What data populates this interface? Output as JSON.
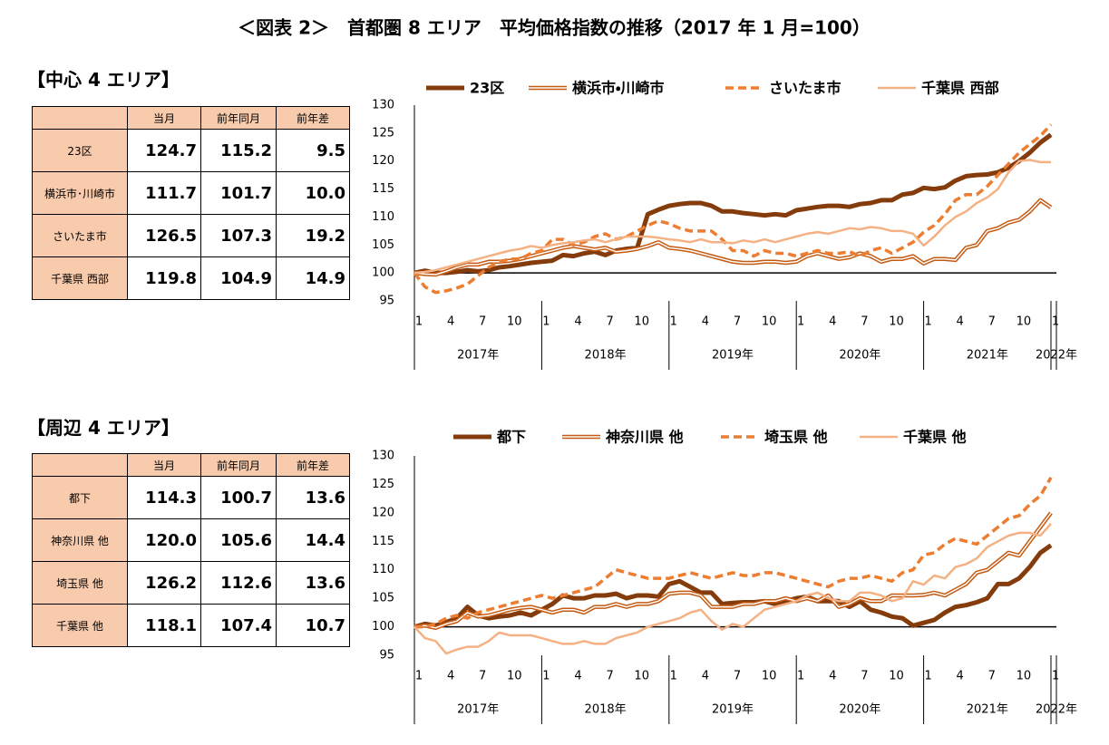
{
  "title": "＜図表 2＞　首都圏 8 エリア　平均価格指数の推移（2017 年 1 月=100）",
  "tables": [
    {
      "heading": "【中心 4 エリア】",
      "columns": [
        "当月",
        "前年同月",
        "前年差"
      ],
      "rows": [
        {
          "name": "23区",
          "cells": [
            "124.7",
            "115.2",
            "9.5"
          ]
        },
        {
          "name": "横浜市･川崎市",
          "cells": [
            "111.7",
            "101.7",
            "10.0"
          ]
        },
        {
          "name": "さいたま市",
          "cells": [
            "126.5",
            "107.3",
            "19.2"
          ]
        },
        {
          "name": "千葉県 西部",
          "cells": [
            "119.8",
            "104.9",
            "14.9"
          ]
        }
      ]
    },
    {
      "heading": "【周辺 4 エリア】",
      "columns": [
        "当月",
        "前年同月",
        "前年差"
      ],
      "rows": [
        {
          "name": "都下",
          "cells": [
            "114.3",
            "100.7",
            "13.6"
          ]
        },
        {
          "name": "神奈川県 他",
          "cells": [
            "120.0",
            "105.6",
            "14.4"
          ]
        },
        {
          "name": "埼玉県 他",
          "cells": [
            "126.2",
            "112.6",
            "13.6"
          ]
        },
        {
          "name": "千葉県 他",
          "cells": [
            "118.1",
            "107.4",
            "10.7"
          ]
        }
      ]
    }
  ],
  "chart_data": [
    {
      "type": "line",
      "categories": [
        1,
        null,
        null,
        4,
        null,
        null,
        7,
        null,
        null,
        10,
        null,
        null,
        1,
        null,
        null,
        4,
        null,
        null,
        7,
        null,
        null,
        10,
        null,
        null,
        1,
        null,
        null,
        4,
        null,
        null,
        7,
        null,
        null,
        10,
        null,
        null,
        1,
        null,
        null,
        4,
        null,
        null,
        7,
        null,
        null,
        10,
        null,
        null,
        1,
        null,
        null,
        4,
        null,
        null,
        7,
        null,
        null,
        10,
        null,
        null,
        1
      ],
      "x_groups": [
        "2017年",
        "2018年",
        "2019年",
        "2020年",
        "2021年",
        "2022年"
      ],
      "ylim": [
        95,
        130
      ],
      "yticks": [
        95,
        100,
        105,
        110,
        115,
        120,
        125,
        130
      ],
      "reference_line": 100,
      "series": [
        {
          "name": "23区",
          "color": "#843c0c",
          "style": "thick",
          "values": [
            100,
            100.4,
            100,
            100,
            100.2,
            100.5,
            100.3,
            100.5,
            101,
            101.2,
            101.5,
            101.8,
            102,
            102.2,
            103.2,
            103,
            103.5,
            103.8,
            103.2,
            104,
            104.3,
            104.5,
            110.5,
            111.3,
            112,
            112.3,
            112.5,
            112.5,
            112,
            111,
            111,
            110.7,
            110.5,
            110.3,
            110.5,
            110.3,
            111.2,
            111.5,
            111.8,
            112,
            112,
            111.8,
            112.3,
            112.5,
            113,
            113,
            114,
            114.3,
            115.2,
            115,
            115.3,
            116.5,
            117.3,
            117.5,
            117.6,
            118,
            118.8,
            120,
            121.5,
            123.3,
            124.7
          ]
        },
        {
          "name": "横浜市・川崎市",
          "color": "#c55a11",
          "style": "double",
          "values": [
            100,
            99.8,
            99.7,
            100.3,
            101,
            101.5,
            101.5,
            102,
            102,
            102.2,
            102.5,
            103,
            103.5,
            104,
            104.5,
            104.8,
            104.5,
            104.2,
            104.5,
            103.8,
            104,
            104.3,
            104.8,
            105.5,
            104.5,
            104.3,
            104,
            103.5,
            103,
            102.5,
            102,
            101.8,
            101.8,
            102,
            102,
            101.8,
            102,
            103,
            103.5,
            103,
            102.5,
            102.8,
            103.5,
            103,
            102,
            102.5,
            102.5,
            103,
            101.7,
            102.5,
            102.5,
            102.3,
            104.5,
            105,
            107.5,
            108,
            109,
            109.5,
            111,
            113,
            111.7
          ]
        },
        {
          "name": "さいたま市",
          "color": "#ed7d31",
          "style": "dashed",
          "values": [
            100,
            97.5,
            96.5,
            96.8,
            97.3,
            98,
            99.5,
            101,
            102,
            102.5,
            102.5,
            103.5,
            104,
            106,
            106,
            105,
            105.5,
            106.5,
            107,
            106,
            106.5,
            107.5,
            108.5,
            109.3,
            108.8,
            108,
            107.5,
            107.5,
            107.5,
            106,
            104,
            104,
            103,
            104,
            103.5,
            103.5,
            103,
            103.5,
            104,
            103.5,
            103.5,
            103.8,
            103,
            104,
            104.5,
            103.5,
            104.5,
            105.5,
            107.3,
            108.5,
            110.5,
            113,
            114,
            114,
            115.5,
            117.5,
            119.5,
            121.5,
            123,
            124.5,
            126.5
          ]
        },
        {
          "name": "千葉県 西部",
          "color": "#f4b183",
          "style": "solid",
          "values": [
            100,
            100.2,
            100.5,
            101,
            101.5,
            102,
            102.5,
            103,
            103.5,
            104,
            104.3,
            104.8,
            104.5,
            105,
            105.3,
            105.5,
            105.8,
            106,
            105.5,
            106,
            106.5,
            106.5,
            106.5,
            106.3,
            106,
            105.8,
            105.5,
            106,
            105.5,
            105.5,
            105.3,
            105.8,
            105.5,
            106,
            105.5,
            106,
            106.5,
            107,
            107.3,
            107,
            107.5,
            108,
            107.8,
            108.2,
            108,
            107.5,
            107.5,
            107,
            104.9,
            106.5,
            108.5,
            110,
            111,
            112.5,
            113.5,
            115,
            118,
            120,
            120.2,
            119.8,
            119.8
          ]
        }
      ]
    },
    {
      "type": "line",
      "categories": [
        1,
        null,
        null,
        4,
        null,
        null,
        7,
        null,
        null,
        10,
        null,
        null,
        1,
        null,
        null,
        4,
        null,
        null,
        7,
        null,
        null,
        10,
        null,
        null,
        1,
        null,
        null,
        4,
        null,
        null,
        7,
        null,
        null,
        10,
        null,
        null,
        1,
        null,
        null,
        4,
        null,
        null,
        7,
        null,
        null,
        10,
        null,
        null,
        1,
        null,
        null,
        4,
        null,
        null,
        7,
        null,
        null,
        10,
        null,
        null,
        1
      ],
      "x_groups": [
        "2017年",
        "2018年",
        "2019年",
        "2020年",
        "2021年",
        "2022年"
      ],
      "ylim": [
        95,
        130
      ],
      "yticks": [
        95,
        100,
        105,
        110,
        115,
        120,
        125,
        130
      ],
      "reference_line": 100,
      "series": [
        {
          "name": "都下",
          "color": "#843c0c",
          "style": "thick",
          "values": [
            100,
            100.5,
            100.2,
            100.8,
            101.5,
            103.5,
            102,
            101.5,
            101.8,
            102,
            102.5,
            102,
            103,
            104,
            105.5,
            105,
            105,
            105.5,
            105.5,
            105.8,
            105,
            105.5,
            105.5,
            105.3,
            107.5,
            108,
            107,
            106,
            106,
            104,
            104.2,
            104.3,
            104.3,
            104.5,
            104,
            104.5,
            105,
            105.3,
            104.5,
            104.5,
            104.5,
            103.5,
            104.5,
            103,
            102.5,
            101.8,
            101.5,
            100.2,
            100.7,
            101.2,
            102.5,
            103.5,
            103.8,
            104.3,
            105,
            107.5,
            107.5,
            108.5,
            110.5,
            113,
            114.3
          ]
        },
        {
          "name": "神奈川県 他",
          "color": "#c55a11",
          "style": "double",
          "values": [
            100,
            100.2,
            99.8,
            100.5,
            101,
            102.5,
            101.8,
            102,
            102.5,
            103,
            103.3,
            103.5,
            103,
            102.5,
            103,
            103,
            102.5,
            103.5,
            103.5,
            104,
            103.5,
            104,
            104,
            104.5,
            105.8,
            106,
            106,
            105.5,
            103.5,
            103.5,
            103.5,
            104,
            104,
            104.5,
            104.5,
            105,
            104.5,
            105,
            104.5,
            105.5,
            103.5,
            104,
            105,
            104.5,
            104.5,
            105.5,
            105.5,
            105.5,
            105.6,
            106,
            105.5,
            106.5,
            107.5,
            109.5,
            110,
            111.5,
            113,
            112.5,
            115,
            117.5,
            120.0
          ]
        },
        {
          "name": "埼玉県 他",
          "color": "#ed7d31",
          "style": "dashed",
          "values": [
            100,
            100,
            100.5,
            101.5,
            102,
            101.5,
            102.5,
            103,
            103.5,
            104,
            104.5,
            105,
            105.5,
            105,
            105.5,
            106,
            106.5,
            107,
            108.5,
            110,
            109.5,
            109,
            108.5,
            108.5,
            108.5,
            109,
            109.5,
            109,
            108.5,
            109,
            109.5,
            109,
            109,
            109.5,
            109.5,
            109,
            108.5,
            108,
            107.5,
            107,
            108,
            108.5,
            108.5,
            109,
            108.5,
            108,
            109.5,
            110,
            112.6,
            113,
            114.5,
            115.5,
            115,
            114.5,
            116,
            117.5,
            119,
            119.5,
            121.5,
            123,
            126.2
          ]
        },
        {
          "name": "千葉県 他",
          "color": "#f4b183",
          "style": "solid",
          "values": [
            100,
            98,
            97.5,
            95.3,
            96,
            96.5,
            96.5,
            97.5,
            99,
            98.5,
            98.5,
            98.5,
            98,
            97.5,
            97,
            97,
            97.5,
            97,
            97,
            98,
            98.5,
            99,
            100,
            100.5,
            101,
            101.5,
            102.5,
            103,
            101,
            99.5,
            100.5,
            100,
            101.5,
            103,
            103.5,
            104,
            104.5,
            105.5,
            106,
            105,
            104.5,
            104.5,
            106,
            106,
            105.5,
            104.5,
            105,
            108,
            107.4,
            109,
            108.5,
            110.5,
            111,
            112,
            114,
            115,
            116,
            116.5,
            116.5,
            116,
            118.1
          ]
        }
      ]
    }
  ]
}
